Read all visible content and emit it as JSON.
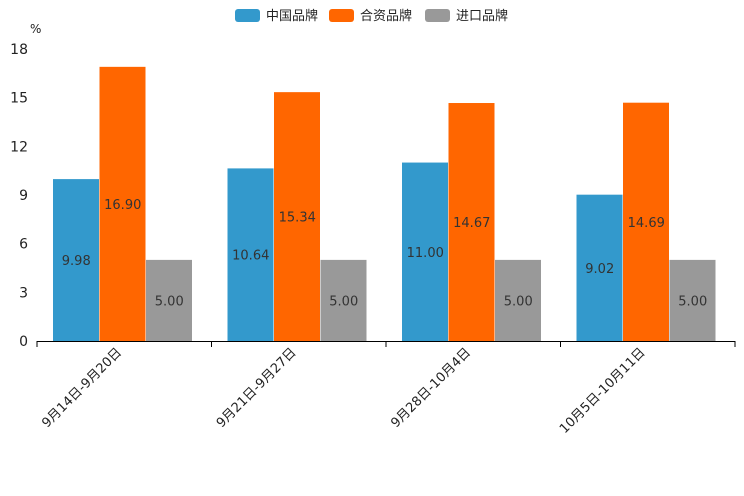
{
  "chart_data": {
    "type": "bar",
    "title": "",
    "xlabel": "",
    "ylabel": "%",
    "ylim": [
      0,
      18
    ],
    "yticks": [
      0,
      3,
      6,
      9,
      12,
      15,
      18
    ],
    "legend_position": "top-center",
    "grid": false,
    "categories": [
      "9月14日-9月20日",
      "9月21日-9月27日",
      "9月28日-10月4日",
      "10月5日-10月11日"
    ],
    "series": [
      {
        "name": "中国品牌",
        "color": "#3399cc",
        "values": [
          9.98,
          10.64,
          11.0,
          9.02
        ],
        "labels": [
          "9.98",
          "10.64",
          "11.00",
          "9.02"
        ]
      },
      {
        "name": "合资品牌",
        "color": "#ff6600",
        "values": [
          16.9,
          15.34,
          14.67,
          14.69
        ],
        "labels": [
          "16.90",
          "15.34",
          "14.67",
          "14.69"
        ]
      },
      {
        "name": "进口品牌",
        "color": "#999999",
        "values": [
          5.0,
          5.0,
          5.0,
          5.0
        ],
        "labels": [
          "5.00",
          "5.00",
          "5.00",
          "5.00"
        ]
      }
    ]
  }
}
